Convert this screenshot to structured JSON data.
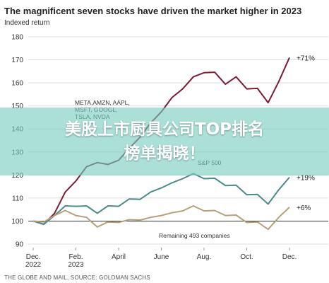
{
  "chart_data": {
    "type": "line",
    "title": "The magnificent seven stocks have driven the market higher in 2023",
    "subtitle": "Indexed return",
    "x_ticks": [
      "Dec. 2022",
      "Feb. 2023",
      "April",
      "June",
      "Aug.",
      "Oct.",
      "Dec."
    ],
    "y_ticks": [
      90,
      100,
      110,
      120,
      130,
      140,
      150,
      160,
      170,
      180
    ],
    "ylim": [
      90,
      180
    ],
    "baseline": 100,
    "grid": true,
    "series": [
      {
        "name": "META,AMZN, AAPL, MSFT, GOOGL, TSLA, NVDA",
        "color": "#7a1e35",
        "end_label": "+71%",
        "x": [
          0,
          0.5,
          1,
          1.5,
          2,
          2.5,
          3,
          3.5,
          4,
          4.5,
          5,
          5.5,
          6,
          6.5,
          7,
          7.5,
          8,
          8.5,
          9,
          9.5,
          10,
          10.5,
          11,
          11.5,
          12
        ],
        "values": [
          100,
          98,
          104,
          112,
          118,
          123,
          126,
          124,
          127,
          131,
          137,
          142,
          148,
          153,
          158,
          162,
          165,
          164,
          160,
          162,
          158,
          157,
          152,
          160,
          171
        ]
      },
      {
        "name": "S&P 500",
        "color": "#4d8a8a",
        "end_label": "+19%",
        "x": [
          0,
          0.5,
          1,
          1.5,
          2,
          2.5,
          3,
          3.5,
          4,
          4.5,
          5,
          5.5,
          6,
          6.5,
          7,
          7.5,
          8,
          8.5,
          9,
          9.5,
          10,
          10.5,
          11,
          11.5,
          12
        ],
        "values": [
          100,
          98,
          103,
          106,
          107,
          106,
          104,
          106,
          107,
          109,
          110,
          112,
          115,
          116,
          119,
          120,
          119,
          118,
          116,
          115,
          112,
          111,
          108,
          113,
          119
        ]
      },
      {
        "name": "Remaining 493 companies",
        "color": "#b5a07a",
        "end_label": "+6%",
        "x": [
          0,
          0.5,
          1,
          1.5,
          2,
          2.5,
          3,
          3.5,
          4,
          4.5,
          5,
          5.5,
          6,
          6.5,
          7,
          7.5,
          8,
          8.5,
          9,
          9.5,
          10,
          10.5,
          11,
          11.5,
          12
        ],
        "values": [
          100,
          99,
          103,
          104,
          103,
          101,
          98,
          99,
          100,
          100,
          101,
          101,
          103,
          103,
          105,
          106,
          105,
          104,
          103,
          102,
          100,
          99,
          97,
          101,
          106
        ]
      }
    ],
    "annotations": [
      {
        "lines": [
          "META,AMZN, AAPL,",
          "MSFT, GOOGL,",
          "TSLA, NVDA"
        ],
        "series": 0
      },
      {
        "lines": [
          "S&P 500"
        ],
        "series": 1
      },
      {
        "lines": [
          "Remaining 493 companies"
        ],
        "series": 2
      }
    ],
    "source": "THE GLOBE AND MAIL, SOURCE: GOLDMAN SACHS"
  },
  "overlay": {
    "line1": "美股上市厨具公司TOP排名",
    "line2": "榜单揭晓！"
  }
}
